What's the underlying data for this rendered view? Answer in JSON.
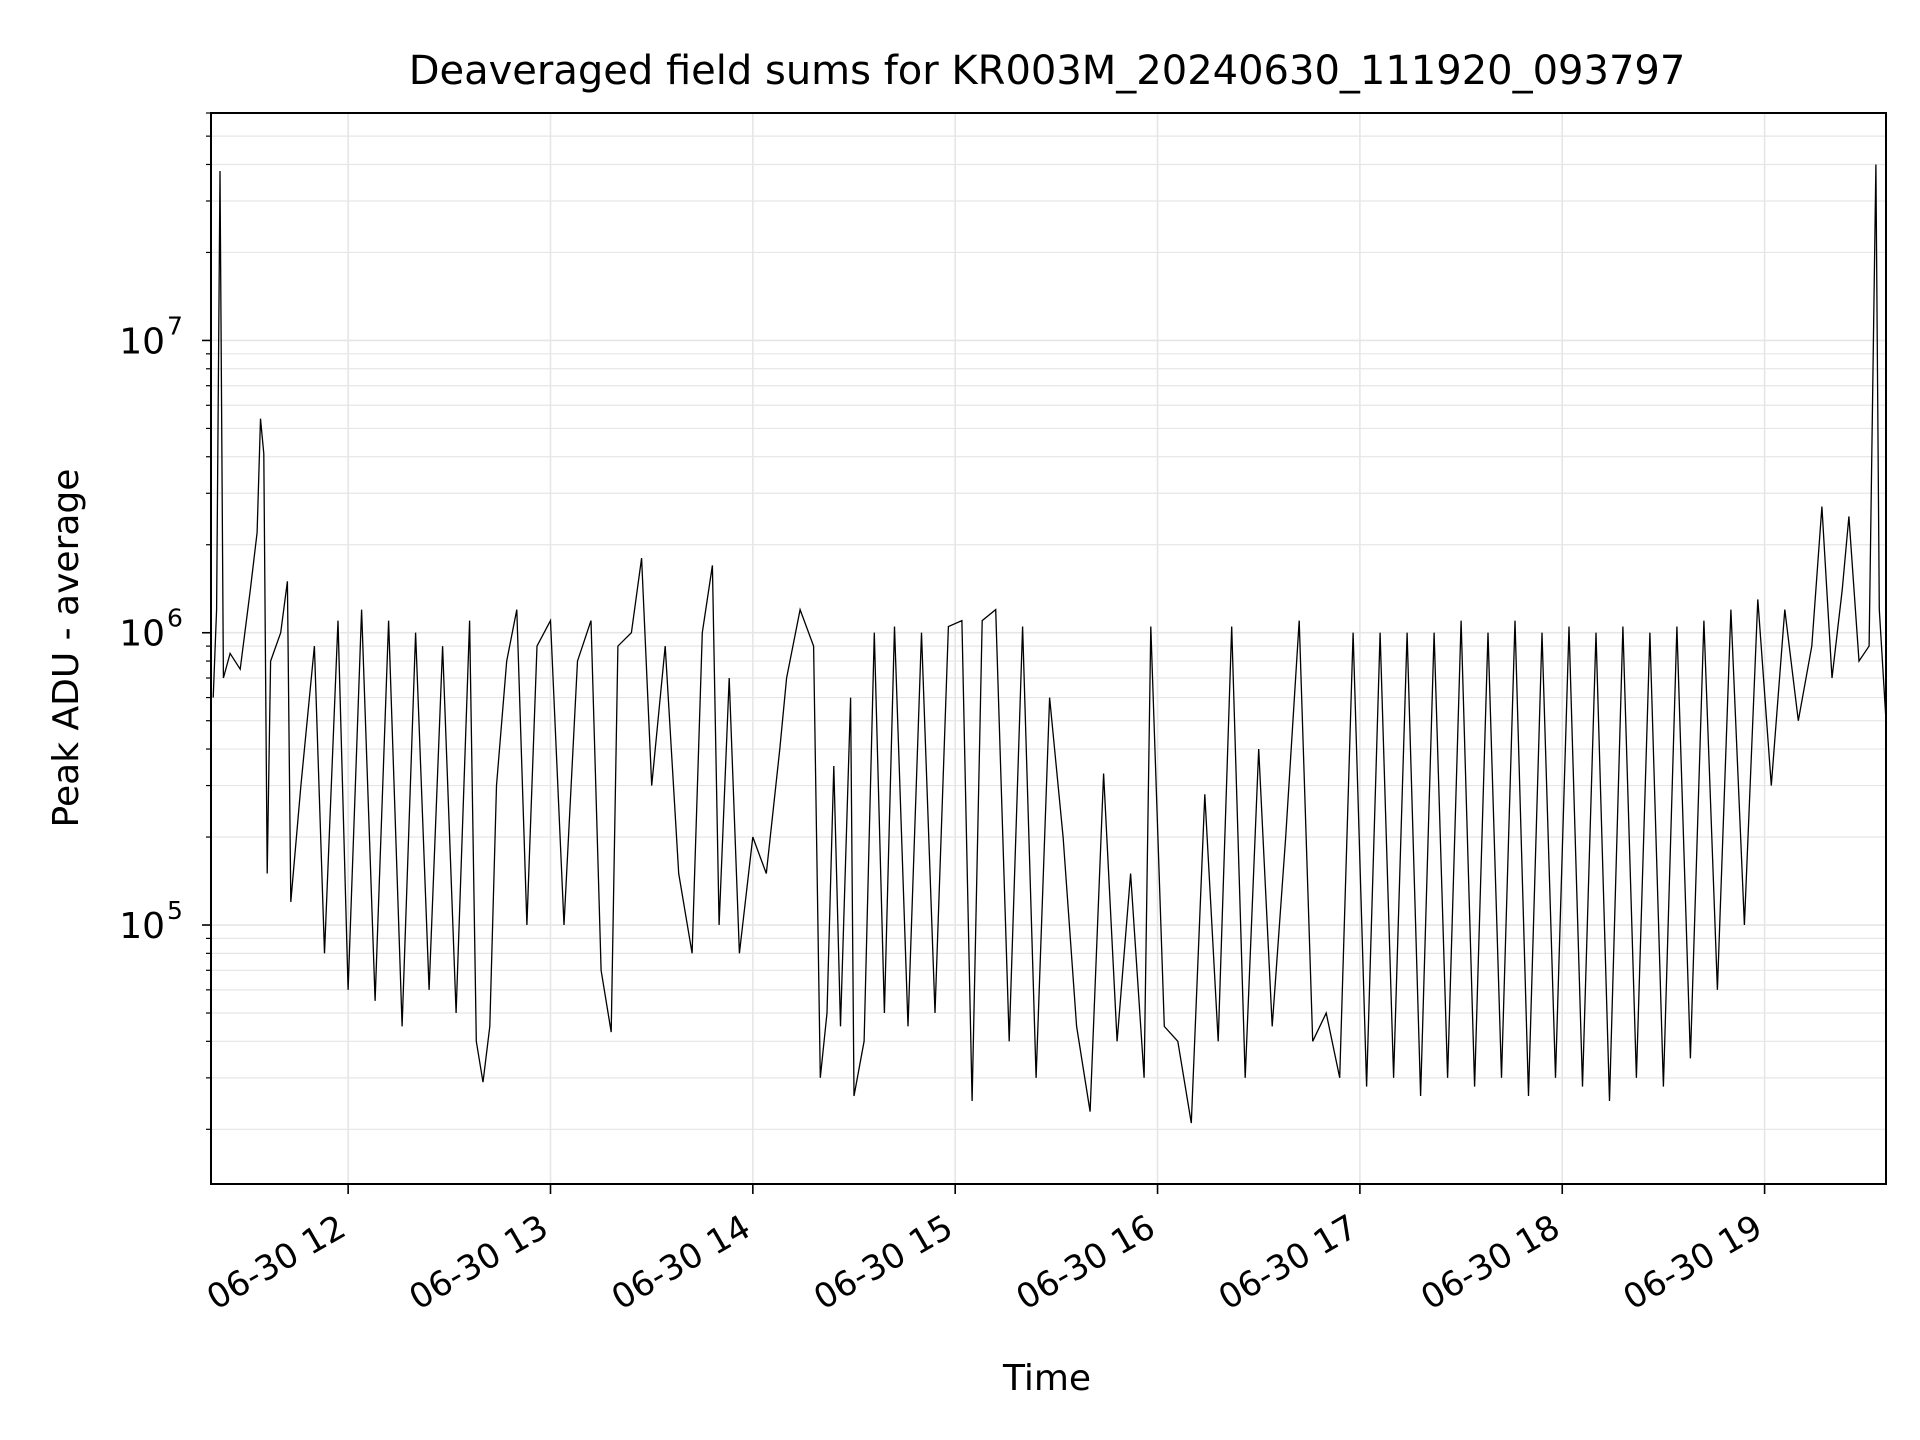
{
  "chart_data": {
    "type": "line",
    "title": "Deaveraged field sums for KR003M_20240630_111920_093797",
    "xlabel": "Time",
    "ylabel": "Peak ADU - average",
    "y_scale": "log",
    "xlim": [
      "2024-06-30T11:19:20",
      "2024-06-30T19:36:00"
    ],
    "ylim": [
      13000,
      60000000
    ],
    "x_ticks": [
      {
        "t": "2024-06-30T12:00",
        "label": "06-30 12"
      },
      {
        "t": "2024-06-30T13:00",
        "label": "06-30 13"
      },
      {
        "t": "2024-06-30T14:00",
        "label": "06-30 14"
      },
      {
        "t": "2024-06-30T15:00",
        "label": "06-30 15"
      },
      {
        "t": "2024-06-30T16:00",
        "label": "06-30 16"
      },
      {
        "t": "2024-06-30T17:00",
        "label": "06-30 17"
      },
      {
        "t": "2024-06-30T18:00",
        "label": "06-30 18"
      },
      {
        "t": "2024-06-30T19:00",
        "label": "06-30 19"
      }
    ],
    "y_ticks": [
      {
        "value": 100000,
        "base": "10",
        "exp": "5"
      },
      {
        "value": 1000000,
        "base": "10",
        "exp": "6"
      },
      {
        "value": 10000000,
        "base": "10",
        "exp": "7"
      }
    ],
    "grid": true,
    "line_color": "#000000",
    "grid_color": "#e6e6e6",
    "series": [
      {
        "points": [
          [
            "2024-06-30T11:20",
            600000
          ],
          [
            "2024-06-30T11:21",
            1200000
          ],
          [
            "2024-06-30T11:22",
            38000000
          ],
          [
            "2024-06-30T11:23",
            700000
          ],
          [
            "2024-06-30T11:25",
            850000
          ],
          [
            "2024-06-30T11:28",
            750000
          ],
          [
            "2024-06-30T11:31",
            1400000
          ],
          [
            "2024-06-30T11:33",
            2200000
          ],
          [
            "2024-06-30T11:34",
            5400000
          ],
          [
            "2024-06-30T11:35",
            4100000
          ],
          [
            "2024-06-30T11:36",
            150000
          ],
          [
            "2024-06-30T11:37",
            800000
          ],
          [
            "2024-06-30T11:40",
            1000000
          ],
          [
            "2024-06-30T11:42",
            1500000
          ],
          [
            "2024-06-30T11:43",
            120000
          ],
          [
            "2024-06-30T11:46",
            300000
          ],
          [
            "2024-06-30T11:50",
            900000
          ],
          [
            "2024-06-30T11:53",
            80000
          ],
          [
            "2024-06-30T11:57",
            1100000
          ],
          [
            "2024-06-30T12:00",
            60000
          ],
          [
            "2024-06-30T12:04",
            1200000
          ],
          [
            "2024-06-30T12:08",
            55000
          ],
          [
            "2024-06-30T12:12",
            1100000
          ],
          [
            "2024-06-30T12:16",
            45000
          ],
          [
            "2024-06-30T12:20",
            1000000
          ],
          [
            "2024-06-30T12:24",
            60000
          ],
          [
            "2024-06-30T12:28",
            900000
          ],
          [
            "2024-06-30T12:32",
            50000
          ],
          [
            "2024-06-30T12:36",
            1100000
          ],
          [
            "2024-06-30T12:38",
            40000
          ],
          [
            "2024-06-30T12:40",
            29000
          ],
          [
            "2024-06-30T12:42",
            45000
          ],
          [
            "2024-06-30T12:44",
            300000
          ],
          [
            "2024-06-30T12:47",
            800000
          ],
          [
            "2024-06-30T12:50",
            1200000
          ],
          [
            "2024-06-30T12:53",
            100000
          ],
          [
            "2024-06-30T12:56",
            900000
          ],
          [
            "2024-06-30T13:00",
            1100000
          ],
          [
            "2024-06-30T13:04",
            100000
          ],
          [
            "2024-06-30T13:08",
            800000
          ],
          [
            "2024-06-30T13:12",
            1100000
          ],
          [
            "2024-06-30T13:15",
            70000
          ],
          [
            "2024-06-30T13:18",
            43000
          ],
          [
            "2024-06-30T13:20",
            900000
          ],
          [
            "2024-06-30T13:24",
            1000000
          ],
          [
            "2024-06-30T13:27",
            1800000
          ],
          [
            "2024-06-30T13:30",
            300000
          ],
          [
            "2024-06-30T13:34",
            900000
          ],
          [
            "2024-06-30T13:38",
            150000
          ],
          [
            "2024-06-30T13:42",
            80000
          ],
          [
            "2024-06-30T13:45",
            1000000
          ],
          [
            "2024-06-30T13:48",
            1700000
          ],
          [
            "2024-06-30T13:50",
            100000
          ],
          [
            "2024-06-30T13:53",
            700000
          ],
          [
            "2024-06-30T13:56",
            80000
          ],
          [
            "2024-06-30T14:00",
            200000
          ],
          [
            "2024-06-30T14:04",
            150000
          ],
          [
            "2024-06-30T14:08",
            400000
          ],
          [
            "2024-06-30T14:10",
            700000
          ],
          [
            "2024-06-30T14:14",
            1200000
          ],
          [
            "2024-06-30T14:18",
            900000
          ],
          [
            "2024-06-30T14:20",
            30000
          ],
          [
            "2024-06-30T14:22",
            50000
          ],
          [
            "2024-06-30T14:24",
            350000
          ],
          [
            "2024-06-30T14:26",
            45000
          ],
          [
            "2024-06-30T14:29",
            600000
          ],
          [
            "2024-06-30T14:30",
            26000
          ],
          [
            "2024-06-30T14:33",
            40000
          ],
          [
            "2024-06-30T14:36",
            1000000
          ],
          [
            "2024-06-30T14:39",
            50000
          ],
          [
            "2024-06-30T14:42",
            1050000
          ],
          [
            "2024-06-30T14:46",
            45000
          ],
          [
            "2024-06-30T14:50",
            1000000
          ],
          [
            "2024-06-30T14:54",
            50000
          ],
          [
            "2024-06-30T14:58",
            1050000
          ],
          [
            "2024-06-30T15:02",
            1100000
          ],
          [
            "2024-06-30T15:05",
            25000
          ],
          [
            "2024-06-30T15:08",
            1100000
          ],
          [
            "2024-06-30T15:12",
            1200000
          ],
          [
            "2024-06-30T15:16",
            40000
          ],
          [
            "2024-06-30T15:20",
            1050000
          ],
          [
            "2024-06-30T15:24",
            30000
          ],
          [
            "2024-06-30T15:28",
            600000
          ],
          [
            "2024-06-30T15:32",
            200000
          ],
          [
            "2024-06-30T15:36",
            45000
          ],
          [
            "2024-06-30T15:40",
            23000
          ],
          [
            "2024-06-30T15:44",
            330000
          ],
          [
            "2024-06-30T15:48",
            40000
          ],
          [
            "2024-06-30T15:52",
            150000
          ],
          [
            "2024-06-30T15:56",
            30000
          ],
          [
            "2024-06-30T15:58",
            1050000
          ],
          [
            "2024-06-30T16:02",
            45000
          ],
          [
            "2024-06-30T16:06",
            40000
          ],
          [
            "2024-06-30T16:10",
            21000
          ],
          [
            "2024-06-30T16:14",
            280000
          ],
          [
            "2024-06-30T16:18",
            40000
          ],
          [
            "2024-06-30T16:22",
            1050000
          ],
          [
            "2024-06-30T16:26",
            30000
          ],
          [
            "2024-06-30T16:30",
            400000
          ],
          [
            "2024-06-30T16:34",
            45000
          ],
          [
            "2024-06-30T16:38",
            200000
          ],
          [
            "2024-06-30T16:42",
            1100000
          ],
          [
            "2024-06-30T16:46",
            40000
          ],
          [
            "2024-06-30T16:50",
            50000
          ],
          [
            "2024-06-30T16:54",
            30000
          ],
          [
            "2024-06-30T16:58",
            1000000
          ],
          [
            "2024-06-30T17:02",
            28000
          ],
          [
            "2024-06-30T17:06",
            1000000
          ],
          [
            "2024-06-30T17:10",
            30000
          ],
          [
            "2024-06-30T17:14",
            1000000
          ],
          [
            "2024-06-30T17:18",
            26000
          ],
          [
            "2024-06-30T17:22",
            1000000
          ],
          [
            "2024-06-30T17:26",
            30000
          ],
          [
            "2024-06-30T17:30",
            1100000
          ],
          [
            "2024-06-30T17:34",
            28000
          ],
          [
            "2024-06-30T17:38",
            1000000
          ],
          [
            "2024-06-30T17:42",
            30000
          ],
          [
            "2024-06-30T17:46",
            1100000
          ],
          [
            "2024-06-30T17:50",
            26000
          ],
          [
            "2024-06-30T17:54",
            1000000
          ],
          [
            "2024-06-30T17:58",
            30000
          ],
          [
            "2024-06-30T18:02",
            1050000
          ],
          [
            "2024-06-30T18:06",
            28000
          ],
          [
            "2024-06-30T18:10",
            1000000
          ],
          [
            "2024-06-30T18:14",
            25000
          ],
          [
            "2024-06-30T18:18",
            1050000
          ],
          [
            "2024-06-30T18:22",
            30000
          ],
          [
            "2024-06-30T18:26",
            1000000
          ],
          [
            "2024-06-30T18:30",
            28000
          ],
          [
            "2024-06-30T18:34",
            1050000
          ],
          [
            "2024-06-30T18:38",
            35000
          ],
          [
            "2024-06-30T18:42",
            1100000
          ],
          [
            "2024-06-30T18:46",
            60000
          ],
          [
            "2024-06-30T18:50",
            1200000
          ],
          [
            "2024-06-30T18:54",
            100000
          ],
          [
            "2024-06-30T18:58",
            1300000
          ],
          [
            "2024-06-30T19:02",
            300000
          ],
          [
            "2024-06-30T19:06",
            1200000
          ],
          [
            "2024-06-30T19:10",
            500000
          ],
          [
            "2024-06-30T19:14",
            900000
          ],
          [
            "2024-06-30T19:17",
            2700000
          ],
          [
            "2024-06-30T19:20",
            700000
          ],
          [
            "2024-06-30T19:23",
            1400000
          ],
          [
            "2024-06-30T19:25",
            2500000
          ],
          [
            "2024-06-30T19:28",
            800000
          ],
          [
            "2024-06-30T19:31",
            900000
          ],
          [
            "2024-06-30T19:33",
            40000000
          ],
          [
            "2024-06-30T19:34",
            1200000
          ],
          [
            "2024-06-30T19:36",
            500000
          ]
        ]
      }
    ]
  }
}
